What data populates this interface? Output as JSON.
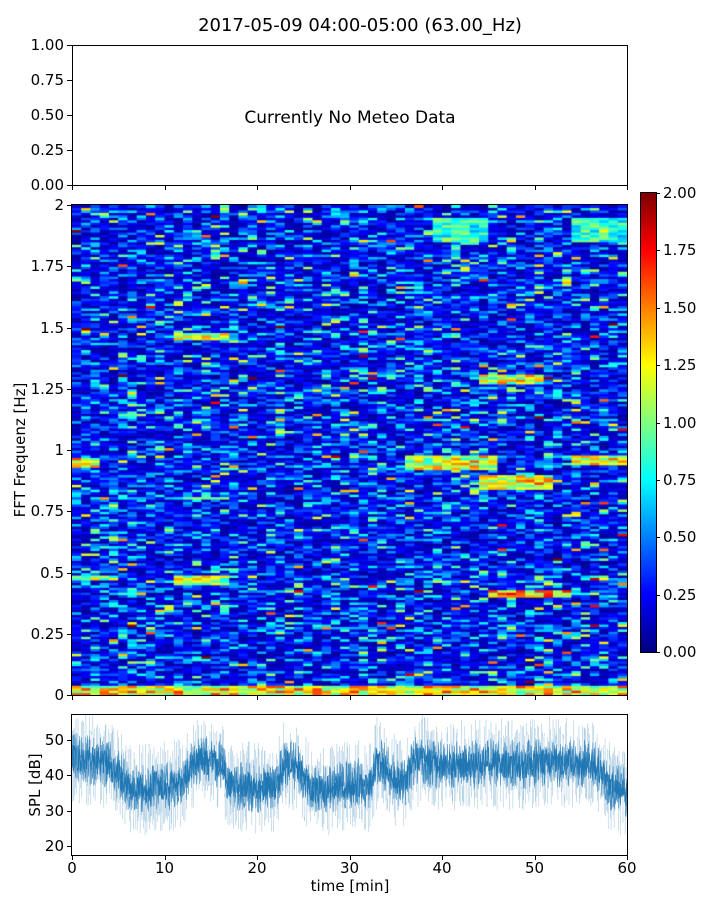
{
  "title": "2017-05-09 04:00-05:00 (63.00_Hz)",
  "chart_data": [
    {
      "type": "table",
      "panel": "meteo",
      "annotation": "Currently No Meteo Data",
      "ylim": [
        0,
        1
      ],
      "yticks": [
        "0.00",
        "0.25",
        "0.50",
        "0.75",
        "1.00"
      ],
      "xlim": [
        0,
        60
      ]
    },
    {
      "type": "heatmap",
      "panel": "spectrogram",
      "ylabel": "FFT Frequenz [Hz]",
      "ylim": [
        0,
        2
      ],
      "yticks": [
        "0",
        "0.25",
        "0.5",
        "0.75",
        "1",
        "1.25",
        "1.5",
        "1.75",
        "2"
      ],
      "xlim": [
        0,
        60
      ],
      "time_bins_min": 60,
      "freq_bins": 200,
      "typical_value": 0.3,
      "hot_bands": [
        {
          "t": [
            0,
            60
          ],
          "f": [
            0.0,
            0.04
          ],
          "value": 1.4
        },
        {
          "t": [
            0,
            3
          ],
          "f": [
            0.93,
            0.97
          ],
          "value": 1.4
        },
        {
          "t": [
            0,
            5
          ],
          "f": [
            0.47,
            0.49
          ],
          "value": 1.2
        },
        {
          "t": [
            11,
            17
          ],
          "f": [
            1.45,
            1.48
          ],
          "value": 1.3
        },
        {
          "t": [
            11,
            17
          ],
          "f": [
            0.45,
            0.49
          ],
          "value": 1.2
        },
        {
          "t": [
            36,
            46
          ],
          "f": [
            0.92,
            0.98
          ],
          "value": 1.3
        },
        {
          "t": [
            44,
            52
          ],
          "f": [
            0.84,
            0.9
          ],
          "value": 1.4
        },
        {
          "t": [
            44,
            51
          ],
          "f": [
            1.27,
            1.31
          ],
          "value": 1.3
        },
        {
          "t": [
            45,
            54
          ],
          "f": [
            0.4,
            0.43
          ],
          "value": 1.5
        },
        {
          "t": [
            54,
            60
          ],
          "f": [
            0.94,
            0.98
          ],
          "value": 1.3
        },
        {
          "t": [
            39,
            45
          ],
          "f": [
            1.85,
            1.95
          ],
          "value": 0.9
        },
        {
          "t": [
            54,
            60
          ],
          "f": [
            1.85,
            1.95
          ],
          "value": 0.9
        }
      ],
      "colorbar": {
        "cmap": "jet",
        "range": [
          0,
          2
        ],
        "ticks": [
          "0.00",
          "0.25",
          "0.50",
          "0.75",
          "1.00",
          "1.25",
          "1.50",
          "1.75",
          "2.00"
        ]
      }
    },
    {
      "type": "line",
      "panel": "spl",
      "xlabel": "time [min]",
      "ylabel": "SPL [dB]",
      "xlim": [
        0,
        60
      ],
      "ylim": [
        17.5,
        57
      ],
      "xticks": [
        "0",
        "10",
        "20",
        "30",
        "40",
        "50",
        "60"
      ],
      "yticks": [
        "20",
        "30",
        "40",
        "50"
      ],
      "color": "#1f77b4",
      "mean_per_minute": [
        45,
        45,
        44,
        44,
        43,
        40,
        37,
        36,
        36,
        37,
        37,
        37,
        38,
        43,
        44,
        44,
        43,
        38,
        37,
        37,
        36,
        37,
        37,
        43,
        43,
        40,
        36,
        36,
        36,
        37,
        37,
        38,
        36,
        44,
        42,
        38,
        38,
        44,
        44,
        43,
        43,
        43,
        43,
        43,
        43,
        44,
        43,
        43,
        43,
        43,
        43,
        44,
        44,
        43,
        44,
        43,
        43,
        42,
        37,
        36,
        35
      ]
    }
  ]
}
